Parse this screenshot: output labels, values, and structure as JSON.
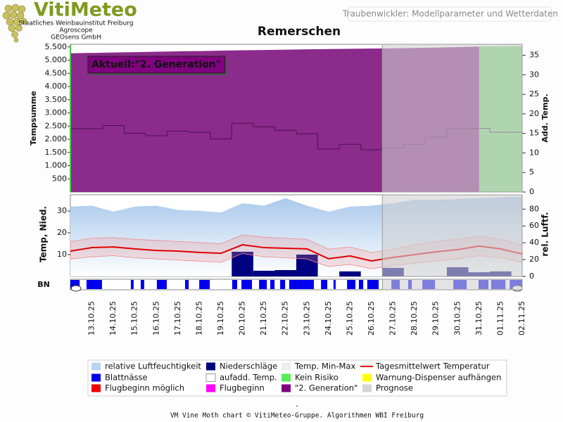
{
  "header": {
    "logo": "VitiMeteo",
    "institutions": [
      "Staatliches Weinbauinstitut Freiburg",
      "Agroscope",
      "GEOsens GmbH"
    ],
    "subtitle": "Traubenwickler: Modellparameter und Wetterdaten"
  },
  "chart_data": [
    {
      "type": "area",
      "title": "Remerschen",
      "annotation": "Aktuell:\"2. Generation\"",
      "y_label": "Tempsumme",
      "y2_label": "Add. Temp.",
      "ylim": [
        0,
        5600
      ],
      "yticks": [
        500,
        {
          "value": 1000,
          "label": "1.000"
        },
        {
          "value": 1500,
          "label": "1.500"
        },
        {
          "value": 2000,
          "label": "2.000"
        },
        {
          "value": 2500,
          "label": "2.500"
        },
        {
          "value": 3000,
          "label": "3.000"
        },
        {
          "value": 3500,
          "label": "3.500"
        },
        {
          "value": 4000,
          "label": "4.000"
        },
        {
          "value": 4500,
          "label": "4.500"
        },
        {
          "value": 5000,
          "label": "5.000"
        },
        {
          "value": 5500,
          "label": "5.500"
        }
      ],
      "y2lim": [
        0,
        37.8
      ],
      "y2ticks": [
        0,
        5,
        10,
        15,
        20,
        25,
        30,
        35
      ],
      "series": [
        {
          "kind": "area",
          "color": "#8b2b8b",
          "values": [
            5260,
            5275,
            5290,
            5305,
            5320,
            5335,
            5345,
            5360,
            5372,
            5385,
            5398,
            5410,
            5420,
            5430,
            5440,
            5448,
            5460,
            5475,
            5495,
            5515,
            null,
            null
          ]
        },
        {
          "kind": "area",
          "color": "#7ddc7d",
          "values": [
            null,
            null,
            null,
            null,
            null,
            null,
            null,
            null,
            null,
            null,
            null,
            null,
            null,
            null,
            null,
            null,
            null,
            null,
            null,
            5515,
            5525,
            5535
          ]
        },
        {
          "kind": "step",
          "axis": "y2",
          "color": "#4b1050",
          "values": [
            16.2,
            16.2,
            17,
            15,
            14.4,
            15.6,
            15.3,
            13.6,
            17.6,
            16.7,
            15.8,
            14.9,
            11,
            12.2,
            10.8,
            11.3,
            12.2,
            14,
            16.2,
            16.3,
            15.3,
            15.3
          ]
        }
      ]
    },
    {
      "type": "combo",
      "y_label": "Temp, Nied.",
      "y2_label": "rel. Luftf.",
      "prognosis_start": "27.10.25",
      "categories": [
        null,
        "13.10.25",
        "14.10.25",
        "15.10.25",
        "16.10.25",
        "17.10.25",
        "18.10.25",
        "19.10.25",
        "20.10.25",
        "21.10.25",
        "22.10.25",
        "23.10.25",
        "24.10.25",
        "25.10.25",
        "26.10.25",
        "27.10.25",
        "28.10.25",
        "29.10.25",
        "30.10.25",
        "31.10.25",
        "01.11.25",
        "02.11.25"
      ],
      "ylim": [
        0,
        37.4
      ],
      "yticks": [
        10,
        20,
        30
      ],
      "y2lim": [
        0,
        97
      ],
      "y2ticks": [
        0,
        20,
        40,
        60,
        80
      ],
      "series": [
        {
          "kind": "area",
          "axis": "y2",
          "color": "#a8c8ec",
          "values": [
            83,
            84,
            77,
            83,
            84,
            79,
            78,
            76,
            87,
            84,
            93,
            84,
            77,
            83,
            84,
            87,
            91,
            91,
            92,
            93,
            94,
            95
          ]
        },
        {
          "kind": "bar",
          "color": "#000080",
          "values": [
            0,
            0,
            0,
            0,
            0,
            0,
            0,
            0,
            11.3,
            2.6,
            2.9,
            10,
            0,
            2.3,
            0,
            3.9,
            0,
            0,
            4.2,
            1.9,
            2.3,
            0
          ]
        },
        {
          "kind": "band",
          "color": "#f08a8a",
          "high": [
            16,
            17.5,
            17.8,
            17,
            16.5,
            16,
            15.5,
            15,
            19,
            18,
            17.5,
            17,
            12.5,
            13.5,
            11,
            12.5,
            14.5,
            16,
            17,
            18.5,
            17,
            14.5
          ],
          "low": [
            8,
            9,
            9.5,
            8.5,
            8,
            7.5,
            7,
            6.5,
            10.5,
            9,
            8.5,
            8,
            4.5,
            5.5,
            3.5,
            5,
            6,
            7,
            8,
            9.5,
            8.5,
            6.5
          ]
        },
        {
          "kind": "line",
          "color": "#e00000",
          "values": [
            11.6,
            13.2,
            13.5,
            12.6,
            11.9,
            11.6,
            11.0,
            10.6,
            14.5,
            13.2,
            12.9,
            12.6,
            8.1,
            9.4,
            7.1,
            8.7,
            10.0,
            11.3,
            12.3,
            13.9,
            12.6,
            10.3
          ]
        }
      ]
    },
    {
      "type": "strip",
      "y_label": "BN",
      "color": "#0000ee",
      "wet_periods": [
        [
          0,
          0.43
        ],
        [
          0.75,
          1.47
        ],
        [
          2.81,
          2.94
        ],
        [
          3.27,
          3.43
        ],
        [
          4.02,
          4.48
        ],
        [
          5.33,
          5.5
        ],
        [
          5.99,
          6.48
        ],
        [
          7.52,
          7.75
        ],
        [
          7.95,
          8.44
        ],
        [
          8.77,
          9.13
        ],
        [
          9.29,
          9.49
        ],
        [
          9.75,
          9.98
        ],
        [
          10.17,
          11.32
        ],
        [
          11.65,
          11.94
        ],
        [
          12.23,
          12.33
        ],
        [
          12.86,
          13.25
        ],
        [
          13.41,
          13.61
        ],
        [
          13.8,
          14.33
        ],
        [
          14.92,
          15.31
        ],
        [
          15.7,
          15.87
        ],
        [
          16.36,
          16.95
        ],
        [
          17.8,
          18.42
        ],
        [
          18.97,
          19.43
        ],
        [
          19.56,
          20.22
        ],
        [
          20.42,
          21
        ]
      ]
    }
  ],
  "legend": [
    {
      "label": "relative Luftfeuchtigkeit",
      "color": "#b8d4ee"
    },
    {
      "label": "Niederschläge",
      "color": "#000080"
    },
    {
      "label": "Temp. Min-Max",
      "color": "#eeeeee"
    },
    {
      "label": "Tagesmittelwert Temperatur",
      "color": "#e00000",
      "swatch": "line"
    },
    {
      "label": "Blattnässe",
      "color": "#0000ee"
    },
    {
      "label": "aufadd. Temp.",
      "color": "#ffffff"
    },
    {
      "label": "Kein Risiko",
      "color": "#55ee55"
    },
    {
      "label": "Warnung-Dispenser aufhängen",
      "color": "#ffff00"
    },
    {
      "label": "Flugbeginn möglich",
      "color": "#ee0000"
    },
    {
      "label": "Flugbeginn",
      "color": "#ff00ff"
    },
    {
      "label": "\"2. Generation\"",
      "color": "#800080"
    },
    {
      "label": "Prognose",
      "color": "#d4d4d4"
    }
  ],
  "footer": {
    "dash": "-",
    "credit": "VM Vine Moth chart © VitiMeteo-Gruppe. Algorithmen WBI Freiburg"
  }
}
